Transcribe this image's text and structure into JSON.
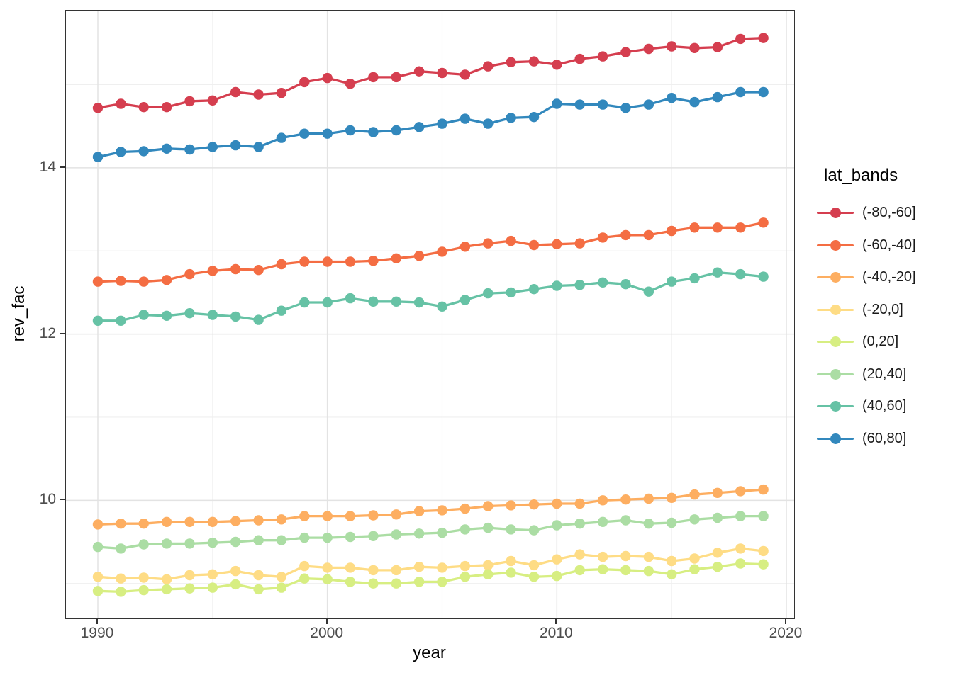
{
  "figure": {
    "background": "#ffffff"
  },
  "panel": {
    "background": "#ffffff",
    "border_color": "#333333",
    "major_grid_color": "#e3e3e3",
    "minor_grid_color": "#efefef",
    "tick_color": "#333333",
    "tick_label_color": "#4d4d4d",
    "axis_title_color": "#000000"
  },
  "chart_data": {
    "type": "line",
    "title": "",
    "xlabel": "year",
    "ylabel": "rev_fac",
    "legend_title": "lat_bands",
    "legend_position": "right",
    "grid": true,
    "xlim": [
      1988.61,
      2020.34
    ],
    "ylim": [
      8.58,
      15.89
    ],
    "x_ticks": [
      1990,
      2000,
      2010,
      2020
    ],
    "x_minor_ticks": [
      1995,
      2005,
      2015
    ],
    "y_ticks": [
      10,
      12,
      14
    ],
    "y_minor_ticks": [
      9,
      11,
      13,
      15
    ],
    "x": [
      1990,
      1991,
      1992,
      1993,
      1994,
      1995,
      1996,
      1997,
      1998,
      1999,
      2000,
      2001,
      2002,
      2003,
      2004,
      2005,
      2006,
      2007,
      2008,
      2009,
      2010,
      2011,
      2012,
      2013,
      2014,
      2015,
      2016,
      2017,
      2018,
      2019
    ],
    "series": [
      {
        "label": "(-80,-60]",
        "color": "#d53e4f",
        "values": [
          14.72,
          14.77,
          14.73,
          14.73,
          14.8,
          14.81,
          14.91,
          14.88,
          14.9,
          15.03,
          15.08,
          15.01,
          15.09,
          15.09,
          15.16,
          15.14,
          15.12,
          15.22,
          15.27,
          15.28,
          15.24,
          15.31,
          15.34,
          15.39,
          15.43,
          15.46,
          15.44,
          15.45,
          15.55,
          15.56
        ]
      },
      {
        "label": "(-60,-40]",
        "color": "#f46d43",
        "values": [
          12.63,
          12.64,
          12.63,
          12.65,
          12.72,
          12.76,
          12.78,
          12.77,
          12.84,
          12.87,
          12.87,
          12.87,
          12.88,
          12.91,
          12.94,
          12.99,
          13.05,
          13.09,
          13.12,
          13.07,
          13.08,
          13.09,
          13.16,
          13.19,
          13.19,
          13.24,
          13.28,
          13.28,
          13.28,
          13.34
        ]
      },
      {
        "label": "(-40,-20]",
        "color": "#fdae61",
        "values": [
          9.71,
          9.72,
          9.72,
          9.74,
          9.74,
          9.74,
          9.75,
          9.76,
          9.77,
          9.81,
          9.81,
          9.81,
          9.82,
          9.83,
          9.87,
          9.88,
          9.9,
          9.93,
          9.94,
          9.95,
          9.96,
          9.96,
          10.0,
          10.01,
          10.02,
          10.03,
          10.07,
          10.09,
          10.11,
          10.13
        ]
      },
      {
        "label": "(-20,0]",
        "color": "#fedc85",
        "values": [
          9.08,
          9.06,
          9.07,
          9.05,
          9.1,
          9.11,
          9.15,
          9.1,
          9.08,
          9.21,
          9.19,
          9.19,
          9.16,
          9.16,
          9.2,
          9.19,
          9.21,
          9.22,
          9.27,
          9.22,
          9.29,
          9.35,
          9.32,
          9.33,
          9.32,
          9.27,
          9.3,
          9.37,
          9.42,
          9.39
        ]
      },
      {
        "label": "(0,20]",
        "color": "#d7ee82",
        "values": [
          8.91,
          8.9,
          8.92,
          8.93,
          8.94,
          8.95,
          8.99,
          8.93,
          8.95,
          9.06,
          9.05,
          9.02,
          9.0,
          9.0,
          9.02,
          9.02,
          9.08,
          9.11,
          9.13,
          9.08,
          9.09,
          9.16,
          9.17,
          9.16,
          9.15,
          9.11,
          9.17,
          9.2,
          9.24,
          9.23
        ]
      },
      {
        "label": "(20,40]",
        "color": "#abdda4",
        "values": [
          9.44,
          9.42,
          9.47,
          9.48,
          9.48,
          9.49,
          9.5,
          9.52,
          9.52,
          9.55,
          9.55,
          9.56,
          9.57,
          9.59,
          9.6,
          9.61,
          9.65,
          9.67,
          9.65,
          9.64,
          9.7,
          9.72,
          9.74,
          9.76,
          9.72,
          9.73,
          9.77,
          9.79,
          9.81,
          9.81
        ]
      },
      {
        "label": "(40,60]",
        "color": "#66c2a5",
        "values": [
          12.16,
          12.16,
          12.23,
          12.22,
          12.25,
          12.23,
          12.21,
          12.17,
          12.28,
          12.38,
          12.38,
          12.43,
          12.39,
          12.39,
          12.38,
          12.33,
          12.41,
          12.49,
          12.5,
          12.54,
          12.58,
          12.59,
          12.62,
          12.6,
          12.51,
          12.63,
          12.67,
          12.74,
          12.72,
          12.69
        ]
      },
      {
        "label": "(60,80]",
        "color": "#3288bd",
        "values": [
          14.13,
          14.19,
          14.2,
          14.23,
          14.22,
          14.25,
          14.27,
          14.25,
          14.36,
          14.41,
          14.41,
          14.45,
          14.43,
          14.45,
          14.49,
          14.53,
          14.59,
          14.53,
          14.6,
          14.61,
          14.77,
          14.76,
          14.76,
          14.72,
          14.76,
          14.84,
          14.79,
          14.85,
          14.91,
          14.91
        ]
      }
    ]
  }
}
